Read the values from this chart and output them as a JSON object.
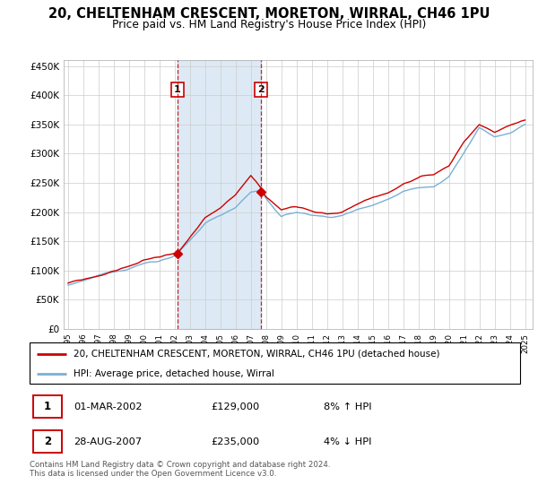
{
  "title": "20, CHELTENHAM CRESCENT, MORETON, WIRRAL, CH46 1PU",
  "subtitle": "Price paid vs. HM Land Registry's House Price Index (HPI)",
  "yticks": [
    0,
    50000,
    100000,
    150000,
    200000,
    250000,
    300000,
    350000,
    400000,
    450000
  ],
  "ytick_labels": [
    "£0",
    "£50K",
    "£100K",
    "£150K",
    "£200K",
    "£250K",
    "£300K",
    "£350K",
    "£400K",
    "£450K"
  ],
  "ylim": [
    0,
    460000
  ],
  "shade_color": "#ccdff0",
  "purchase1_year": 2002.17,
  "purchase1_price": 129000,
  "purchase2_year": 2007.65,
  "purchase2_price": 235000,
  "legend_entry1": "20, CHELTENHAM CRESCENT, MORETON, WIRRAL, CH46 1PU (detached house)",
  "legend_entry2": "HPI: Average price, detached house, Wirral",
  "table_row1": [
    "1",
    "01-MAR-2002",
    "£129,000",
    "8% ↑ HPI"
  ],
  "table_row2": [
    "2",
    "28-AUG-2007",
    "£235,000",
    "4% ↓ HPI"
  ],
  "footer": "Contains HM Land Registry data © Crown copyright and database right 2024.\nThis data is licensed under the Open Government Licence v3.0.",
  "line_color_red": "#cc0000",
  "line_color_blue": "#7ab0d4",
  "box_color": "#cc0000",
  "xlim_left": 1994.7,
  "xlim_right": 2025.5
}
